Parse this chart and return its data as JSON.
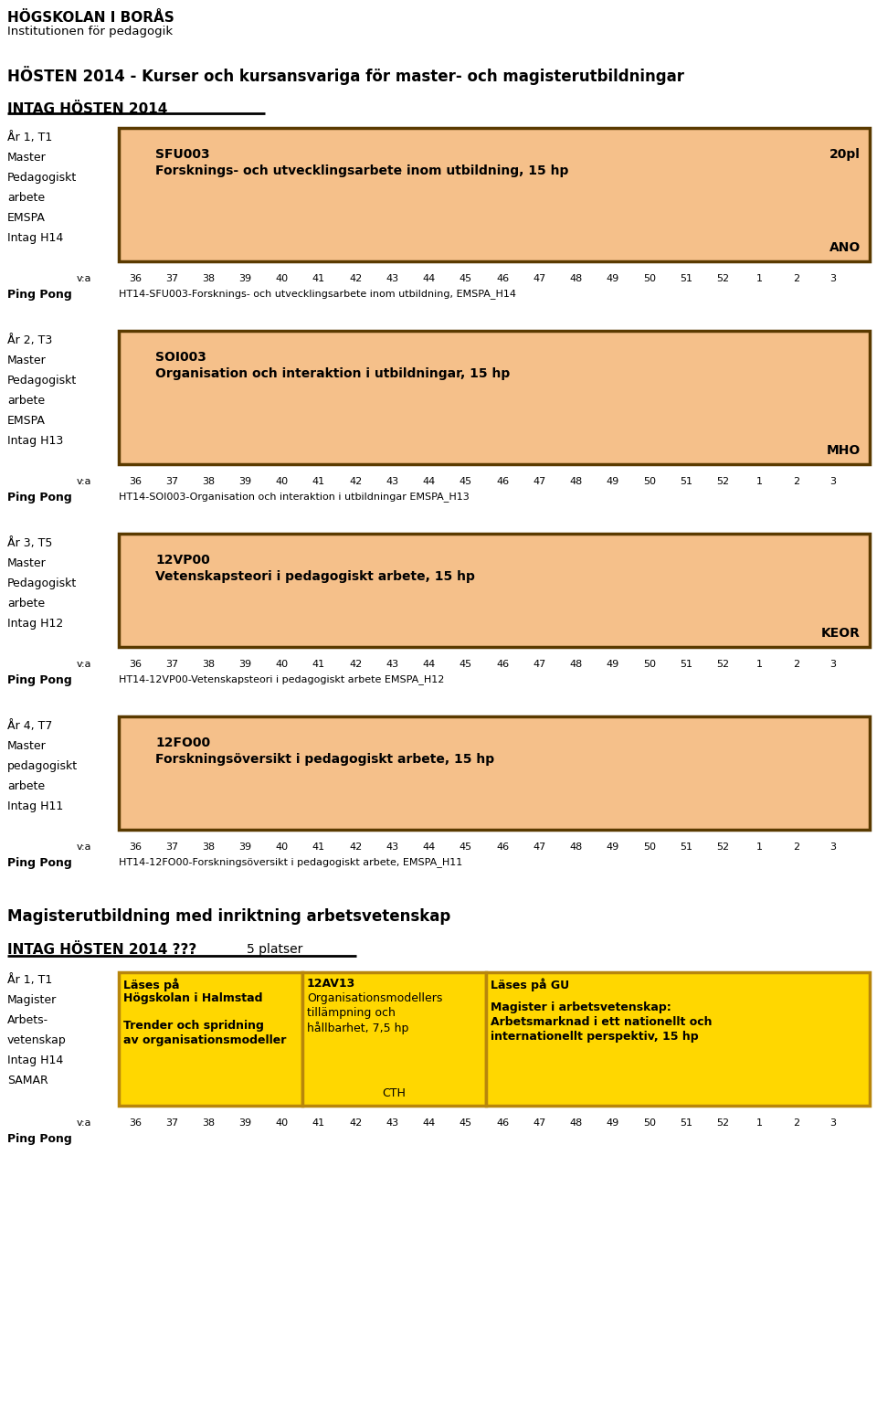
{
  "title_line1": "HÖGSKOLAN I BORÅS",
  "title_line2": "Institutionen för pedagogik",
  "main_heading": "HÖSTEN 2014 - Kurser och kursansvariga för master- och magisterutbildningar",
  "section_heading1": "INTAG HÖSTEN 2014",
  "section_heading2": "Magisterutbildning med inriktning arbetsvetenskap",
  "section_heading3": "INTAG HÖSTEN 2014 ???",
  "section_heading3b": "5 platser",
  "box_color": "#F5C08A",
  "box_border": "#5a3a00",
  "week_labels_full": [
    "36",
    "37",
    "38",
    "39",
    "40",
    "41",
    "42",
    "43",
    "44",
    "45",
    "46",
    "47",
    "48",
    "49",
    "50",
    "51",
    "52",
    "1",
    "2",
    "3"
  ],
  "week_labels_short": [
    "36",
    "37",
    "38",
    "39",
    "40",
    "41",
    "42",
    "43",
    "44",
    "45"
  ],
  "rows": [
    {
      "year_term": "År 1, T1",
      "left_labels": [
        "Master",
        "Pedagogiskt",
        "arbete",
        "EMSPA",
        "Intag H14"
      ],
      "box_code": "SFU003",
      "box_desc": "Forsknings- och utvecklingsarbete inom utbildning, 15 hp",
      "box_right_top": "20pl",
      "box_right_bottom": "ANO",
      "pingpong": "HT14-SFU003-Forsknings- och utvecklingsarbete inom utbildning, EMSPA_H14"
    },
    {
      "year_term": "År 2, T3",
      "left_labels": [
        "Master",
        "Pedagogiskt",
        "arbete",
        "EMSPA",
        "Intag H13"
      ],
      "box_code": "SOI003",
      "box_desc": "Organisation och interaktion i utbildningar, 15 hp",
      "box_right_top": "",
      "box_right_bottom": "MHO",
      "pingpong": "HT14-SOI003-Organisation och interaktion i utbildningar EMSPA_H13"
    },
    {
      "year_term": "År 3, T5",
      "left_labels": [
        "Master",
        "Pedagogiskt",
        "arbete",
        "Intag H12"
      ],
      "box_code": "12VP00",
      "box_desc": "Vetenskapsteori i pedagogiskt arbete, 15 hp",
      "box_right_top": "",
      "box_right_bottom": "KEOR",
      "pingpong": "HT14-12VP00-Vetenskapsteori i pedagogiskt arbete EMSPA_H12"
    },
    {
      "year_term": "År 4, T7",
      "left_labels": [
        "Master",
        "pedagogiskt",
        "arbete",
        "Intag H11"
      ],
      "box_code": "12FO00",
      "box_desc": "Forskningsöversikt i pedagogiskt arbete, 15 hp",
      "box_right_top": "",
      "box_right_bottom": "",
      "pingpong": "HT14-12FO00-Forskningsöversikt i pedagogiskt arbete, EMSPA_H11"
    }
  ],
  "bottom_section": {
    "year_term": "År 1, T1",
    "left_labels": [
      "Magister",
      "Arbets-",
      "vetenskap",
      "Intag H14",
      "SAMAR"
    ],
    "col1_bg": "#FFD700",
    "col2_bg": "#FFD700",
    "col3_bg": "#FFD700",
    "col1_header": "Läses på",
    "col1_school": "Högskolan i Halmstad",
    "col1_line1": "Trender och spridning",
    "col1_line2": "av organisationsmodeller",
    "col2_header": "12AV13",
    "col2_line1": "Organisationsmodellers",
    "col2_line2": "tillämpning och",
    "col2_line3": "hållbarhet, 7,5 hp",
    "col2_footer": "CTH",
    "col3_header": "Läses på GU",
    "col3_line1": "",
    "col3_line2": "Magister i arbetsvetenskap:",
    "col3_line3": "Arbetsmarknad i ett nationellt och",
    "col3_line4": "internationellt perspektiv, 15 hp"
  }
}
